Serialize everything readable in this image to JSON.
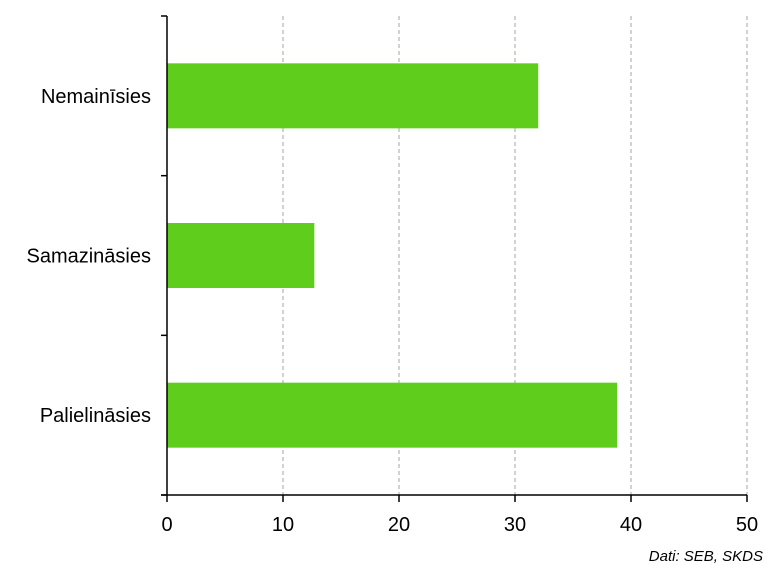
{
  "chart_data": {
    "type": "bar",
    "orientation": "horizontal",
    "categories": [
      "Nemainīsies",
      "Samazināsies",
      "Palielināsies"
    ],
    "values": [
      32,
      12.7,
      38.8
    ],
    "xlim": [
      0,
      50
    ],
    "xticks": [
      "0",
      "10",
      "20",
      "30",
      "40",
      "50"
    ],
    "grid": true,
    "bar_color": "#5fcd1b",
    "source": "Dati: SEB, SKDS"
  }
}
